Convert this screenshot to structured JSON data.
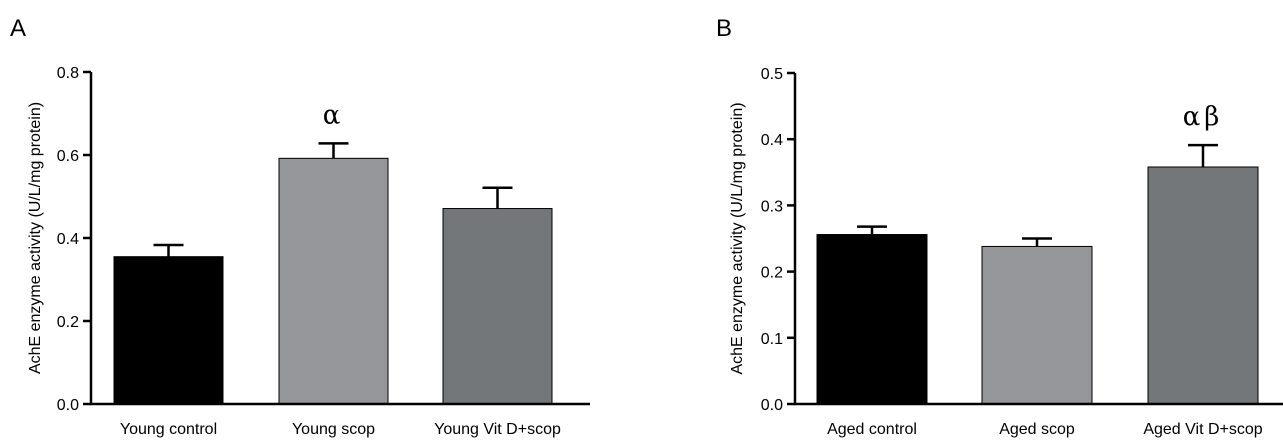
{
  "chart_data": [
    {
      "panel": "A",
      "type": "bar",
      "ylabel": "AchE enzyme activity (U/L/mg protein)",
      "ylim": [
        0,
        0.8
      ],
      "yticks": [
        "0.0",
        "0.2",
        "0.4",
        "0.6",
        "0.8"
      ],
      "grid": false,
      "categories": [
        "Young control",
        "Young scop",
        "Young Vit D+scop"
      ],
      "values": [
        0.355,
        0.592,
        0.471
      ],
      "errors": [
        0.028,
        0.036,
        0.05
      ],
      "colors": [
        "#000000",
        "#96979b",
        "#747779"
      ],
      "annotations": [
        "",
        "α",
        ""
      ]
    },
    {
      "panel": "B",
      "type": "bar",
      "ylabel": "AchE enzyme activity (U/L/mg protein)",
      "ylim": [
        0,
        0.5
      ],
      "yticks": [
        "0.0",
        "0.1",
        "0.2",
        "0.3",
        "0.4",
        "0.5"
      ],
      "grid": false,
      "categories": [
        "Aged control",
        "Aged scop",
        "Aged Vit D+scop"
      ],
      "values": [
        0.256,
        0.238,
        0.358
      ],
      "errors": [
        0.012,
        0.012,
        0.033
      ],
      "colors": [
        "#000000",
        "#96979b",
        "#747779"
      ],
      "annotations": [
        "",
        "",
        "αβ"
      ]
    }
  ]
}
